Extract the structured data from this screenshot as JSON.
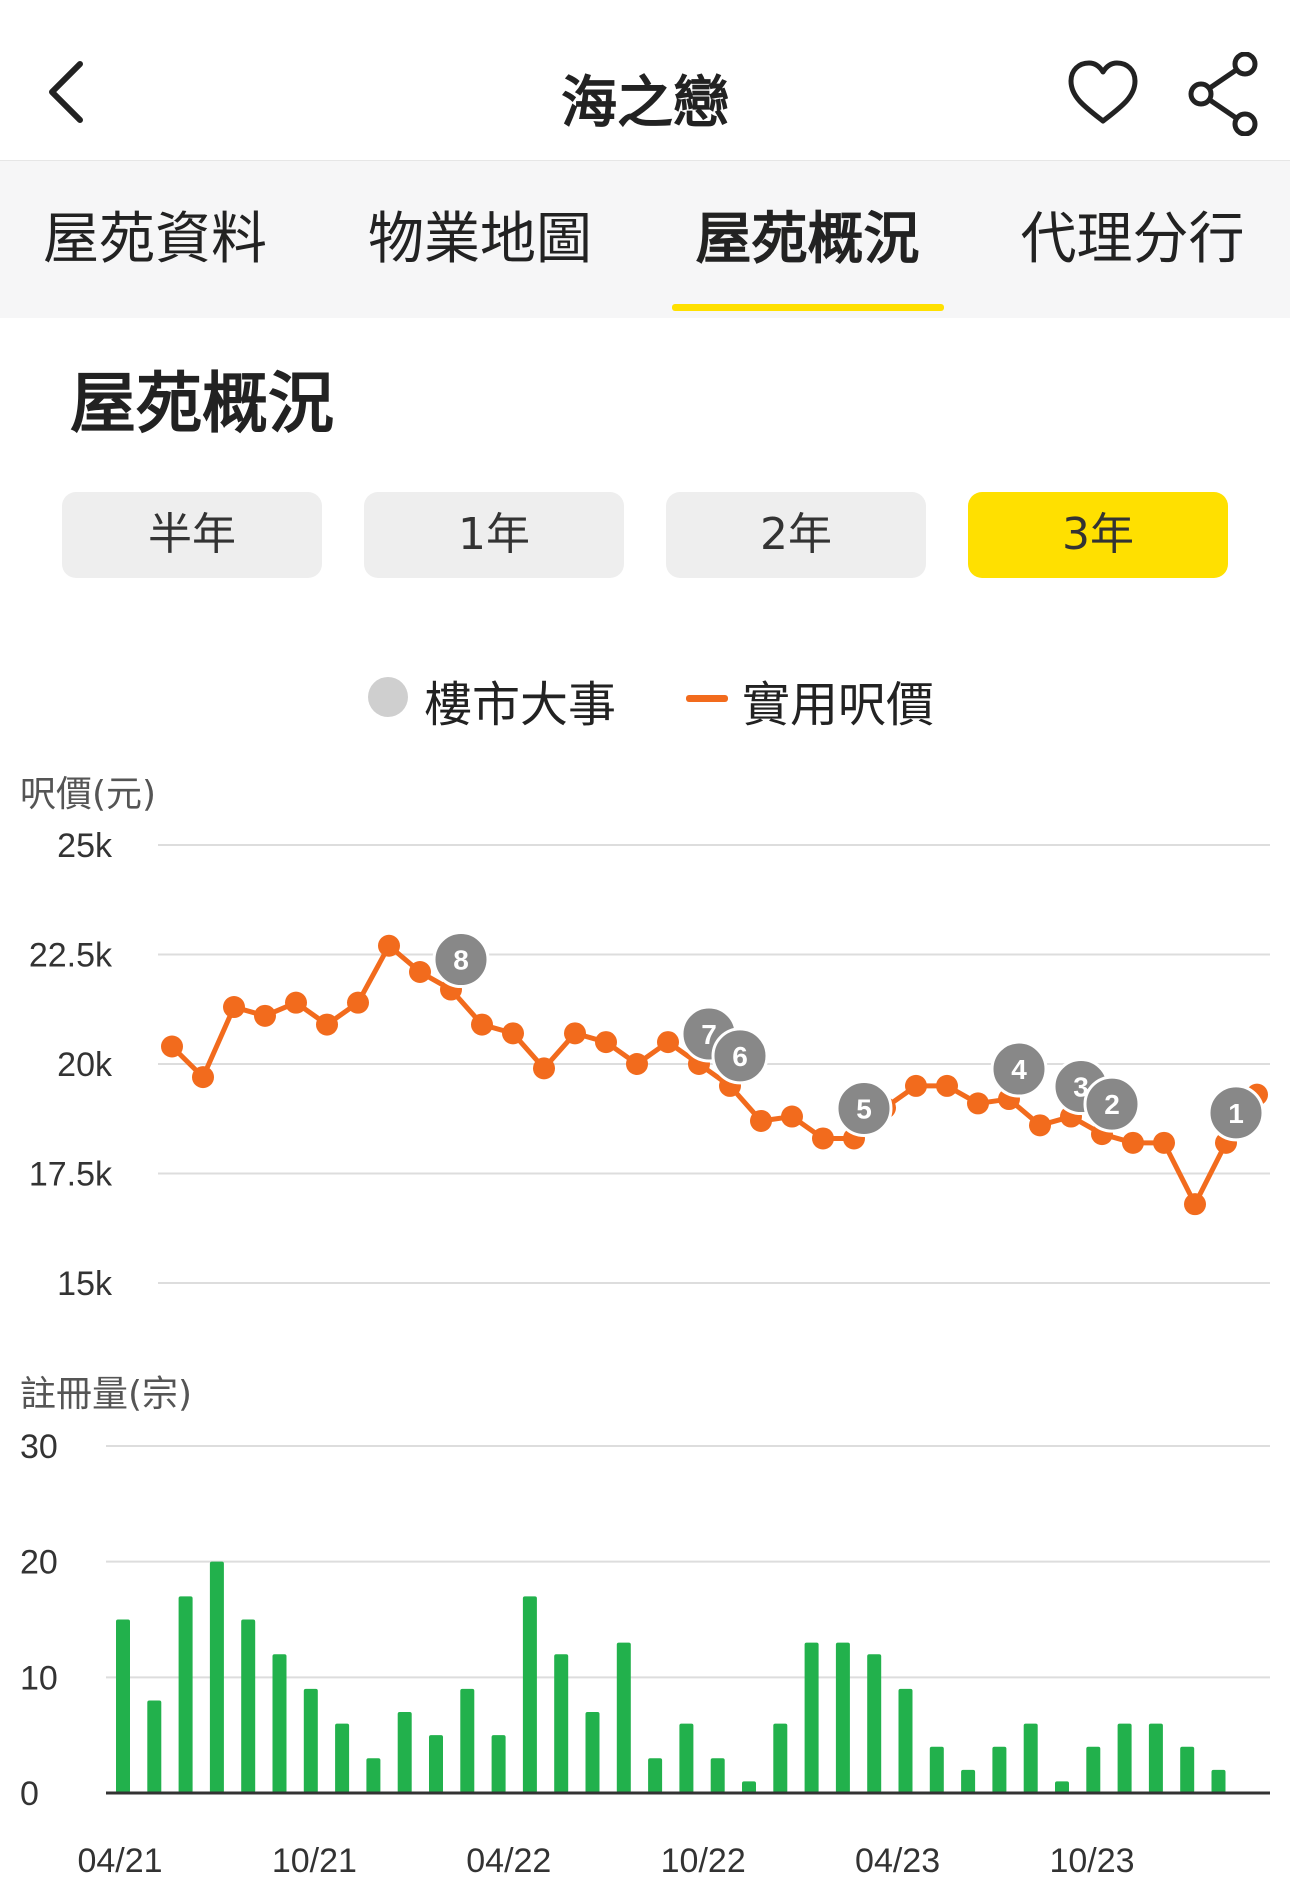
{
  "header": {
    "title": "海之戀",
    "back_icon": "chevron-left-icon",
    "favorite_icon": "heart-icon",
    "share_icon": "share-icon"
  },
  "tabs": [
    {
      "label": "屋苑資料",
      "active": false
    },
    {
      "label": "物業地圖",
      "active": false
    },
    {
      "label": "屋苑概況",
      "active": true
    },
    {
      "label": "代理分行",
      "active": false
    }
  ],
  "section_title": "屋苑概況",
  "ranges": [
    {
      "label": "半年",
      "active": false
    },
    {
      "label": "1年",
      "active": false
    },
    {
      "label": "2年",
      "active": false
    },
    {
      "label": "3年",
      "active": true
    }
  ],
  "legend": {
    "events_label": "樓市大事",
    "price_label": "實用呎價"
  },
  "colors": {
    "accent": "#ffe000",
    "price_line": "#f26b1d",
    "volume_bar": "#22b14c",
    "event_marker": "#888888"
  },
  "chart_data": [
    {
      "type": "line",
      "ylabel": "呎價(元)",
      "ylim": [
        15000,
        25000
      ],
      "y_ticks": [
        "15k",
        "17.5k",
        "20k",
        "22.5k",
        "25k"
      ],
      "x_ticks": [
        "04/21",
        "10/21",
        "04/22",
        "10/22",
        "04/23",
        "10/23"
      ],
      "grid": true,
      "series": [
        {
          "name": "實用呎價",
          "values": [
            20400,
            19700,
            21300,
            21100,
            21400,
            20900,
            21400,
            22700,
            22100,
            21700,
            20900,
            20700,
            19900,
            20700,
            20500,
            20000,
            20500,
            20000,
            19500,
            18700,
            18800,
            18300,
            18300,
            19000,
            19500,
            19500,
            19100,
            19200,
            18600,
            18800,
            18400,
            18200,
            18200,
            16800,
            18200,
            19300
          ]
        }
      ],
      "events": [
        {
          "label": "8",
          "index": 9
        },
        {
          "label": "7",
          "index": 17
        },
        {
          "label": "6",
          "index": 18
        },
        {
          "label": "5",
          "index": 22
        },
        {
          "label": "4",
          "index": 27
        },
        {
          "label": "3",
          "index": 29
        },
        {
          "label": "2",
          "index": 30
        },
        {
          "label": "1",
          "index": 34
        }
      ]
    },
    {
      "type": "bar",
      "ylabel": "註冊量(宗)",
      "ylim": [
        0,
        30
      ],
      "y_ticks": [
        "0",
        "10",
        "20",
        "30"
      ],
      "x_ticks": [
        "04/21",
        "10/21",
        "04/22",
        "10/22",
        "04/23",
        "10/23"
      ],
      "grid": true,
      "values": [
        15,
        8,
        17,
        20,
        15,
        12,
        9,
        6,
        3,
        7,
        5,
        9,
        5,
        17,
        12,
        7,
        13,
        3,
        6,
        3,
        1,
        6,
        13,
        13,
        12,
        9,
        4,
        2,
        4,
        6,
        1,
        4,
        6,
        6,
        4,
        2
      ]
    }
  ]
}
